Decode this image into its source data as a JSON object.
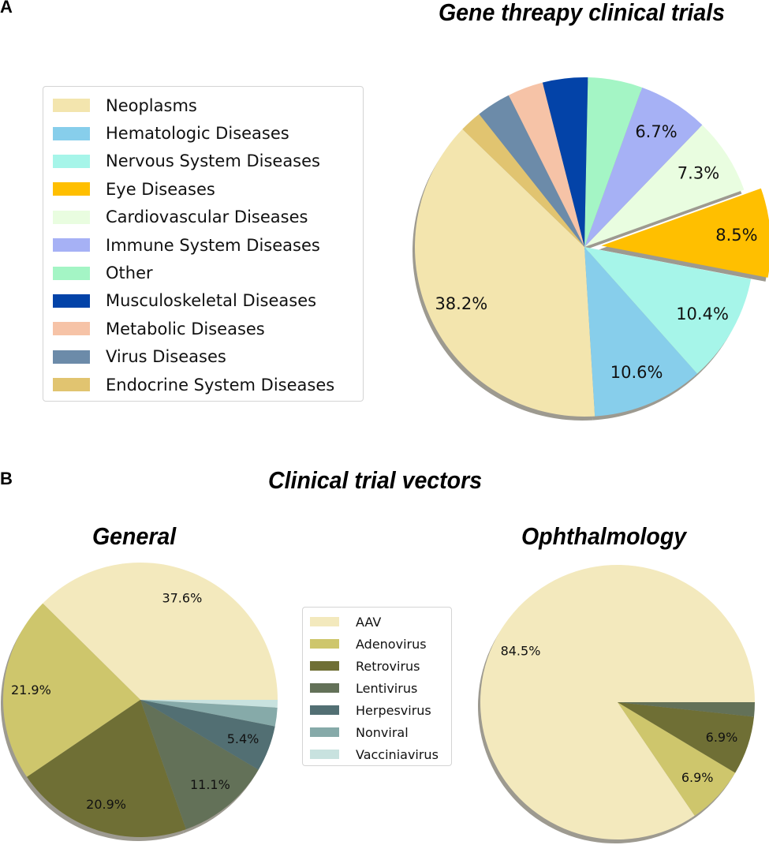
{
  "panels": {
    "a": "A",
    "b": "B"
  },
  "section_b_title": "Clinical trial vectors",
  "chart_data": [
    {
      "type": "pie",
      "title": "Gene threapy clinical trials",
      "categories": [
        "Neoplasms",
        "Hematologic Diseases",
        "Nervous System Diseases",
        "Eye Diseases",
        "Cardiovascular Diseases",
        "Immune System Diseases",
        "Other",
        "Musculoskeletal Diseases",
        "Metabolic Diseases",
        "Virus Diseases",
        "Endocrine System Diseases"
      ],
      "values": [
        38.2,
        10.6,
        10.4,
        8.5,
        7.3,
        6.7,
        5.2,
        4.3,
        3.4,
        3.3,
        2.1
      ],
      "labels": [
        "38.2%",
        "10.6%",
        "10.4%",
        "8.5%",
        "7.3%",
        "6.7%",
        "",
        "",
        "",
        "",
        ""
      ],
      "colors": [
        "#f3e5ae",
        "#87ceeb",
        "#a6f5e9",
        "#ffbf00",
        "#e9fde0",
        "#a6b1f5",
        "#a4f5c5",
        "#0343a8",
        "#f6c3a7",
        "#6c8ba9",
        "#e1c470"
      ],
      "exploded": [
        "Eye Diseases"
      ],
      "shadow": true,
      "legend_position": "left"
    },
    {
      "type": "pie",
      "title": "General",
      "categories": [
        "AAV",
        "Adenovirus",
        "Retrovirus",
        "Lentivirus",
        "Herpesvirus",
        "Nonviral",
        "Vacciniavirus"
      ],
      "values": [
        37.6,
        21.9,
        20.9,
        11.1,
        5.4,
        2.2,
        0.9
      ],
      "labels": [
        "37.6%",
        "21.9%",
        "20.9%",
        "11.1%",
        "5.4%",
        "",
        ""
      ],
      "colors": [
        "#f3e9bd",
        "#cec66c",
        "#6f6f35",
        "#637158",
        "#526f73",
        "#86aaa9",
        "#c8e2df"
      ],
      "shadow": true,
      "legend_position": "center"
    },
    {
      "type": "pie",
      "title": "Ophthalmology",
      "categories": [
        "AAV",
        "Adenovirus",
        "Retrovirus",
        "Lentivirus"
      ],
      "values": [
        84.5,
        6.9,
        6.9,
        1.7
      ],
      "labels": [
        "84.5%",
        "6.9%",
        "6.9%",
        ""
      ],
      "colors": [
        "#f3e9bd",
        "#cec66c",
        "#6f6f35",
        "#637158"
      ],
      "shadow": true
    }
  ],
  "legend_b": {
    "items": [
      "AAV",
      "Adenovirus",
      "Retrovirus",
      "Lentivirus",
      "Herpesvirus",
      "Nonviral",
      "Vacciniavirus"
    ],
    "colors": [
      "#f3e9bd",
      "#cec66c",
      "#6f6f35",
      "#637158",
      "#526f73",
      "#86aaa9",
      "#c8e2df"
    ]
  }
}
